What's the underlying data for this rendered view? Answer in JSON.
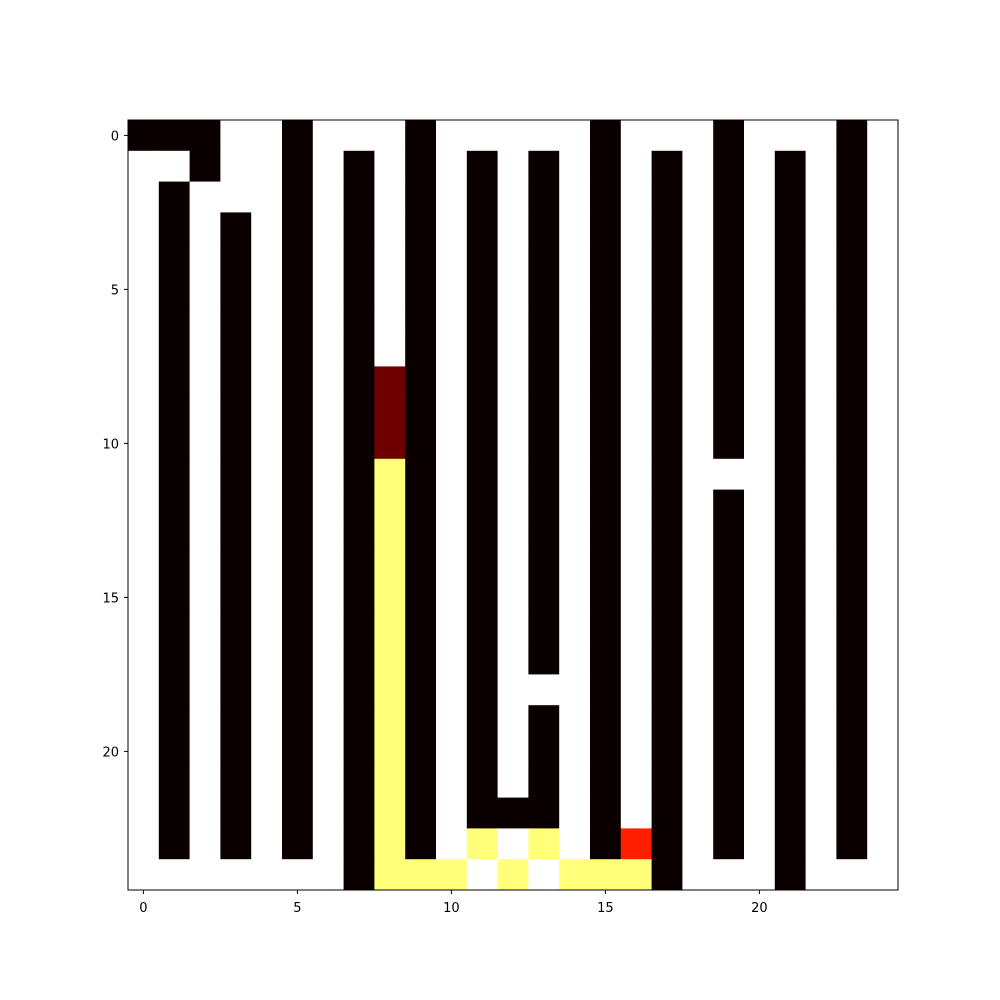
{
  "chart_data": {
    "type": "heatmap",
    "title": "",
    "xlabel": "",
    "ylabel": "",
    "rows": 25,
    "cols": 25,
    "xlim": [
      -0.5,
      24.5
    ],
    "ylim": [
      24.5,
      -0.5
    ],
    "y_axis_inverted": true,
    "grid": false,
    "x_ticks": [
      0,
      5,
      10,
      15,
      20
    ],
    "y_ticks": [
      0,
      5,
      10,
      15,
      20
    ],
    "x_tick_labels": [
      "0",
      "5",
      "10",
      "15",
      "20"
    ],
    "y_tick_labels": [
      "0",
      "5",
      "10",
      "15",
      "20"
    ],
    "colormap": "hot",
    "value_legend": {
      "0": "wall (black)",
      "1": "visited (dark red)",
      "2": "current position (red)",
      "3": "path (yellow)",
      "4": "open (white)"
    },
    "colors": {
      "0": "#0b0000",
      "1": "#6e0000",
      "2": "#ff1e00",
      "3": "#ffff7a",
      "4": "#ffffff"
    },
    "grid_values": [
      [
        0,
        0,
        0,
        4,
        4,
        0,
        4,
        4,
        4,
        0,
        4,
        4,
        4,
        4,
        4,
        0,
        4,
        4,
        4,
        0,
        4,
        4,
        4,
        0,
        4
      ],
      [
        4,
        4,
        0,
        4,
        4,
        0,
        4,
        0,
        4,
        0,
        4,
        0,
        4,
        0,
        4,
        0,
        4,
        0,
        4,
        0,
        4,
        0,
        4,
        0,
        4
      ],
      [
        4,
        0,
        4,
        4,
        4,
        0,
        4,
        0,
        4,
        0,
        4,
        0,
        4,
        0,
        4,
        0,
        4,
        0,
        4,
        0,
        4,
        0,
        4,
        0,
        4
      ],
      [
        4,
        0,
        4,
        0,
        4,
        0,
        4,
        0,
        4,
        0,
        4,
        0,
        4,
        0,
        4,
        0,
        4,
        0,
        4,
        0,
        4,
        0,
        4,
        0,
        4
      ],
      [
        4,
        0,
        4,
        0,
        4,
        0,
        4,
        0,
        4,
        0,
        4,
        0,
        4,
        0,
        4,
        0,
        4,
        0,
        4,
        0,
        4,
        0,
        4,
        0,
        4
      ],
      [
        4,
        0,
        4,
        0,
        4,
        0,
        4,
        0,
        4,
        0,
        4,
        0,
        4,
        0,
        4,
        0,
        4,
        0,
        4,
        0,
        4,
        0,
        4,
        0,
        4
      ],
      [
        4,
        0,
        4,
        0,
        4,
        0,
        4,
        0,
        4,
        0,
        4,
        0,
        4,
        0,
        4,
        0,
        4,
        0,
        4,
        0,
        4,
        0,
        4,
        0,
        4
      ],
      [
        4,
        0,
        4,
        0,
        4,
        0,
        4,
        0,
        4,
        0,
        4,
        0,
        4,
        0,
        4,
        0,
        4,
        0,
        4,
        0,
        4,
        0,
        4,
        0,
        4
      ],
      [
        4,
        0,
        4,
        0,
        4,
        0,
        4,
        0,
        1,
        0,
        4,
        0,
        4,
        0,
        4,
        0,
        4,
        0,
        4,
        0,
        4,
        0,
        4,
        0,
        4
      ],
      [
        4,
        0,
        4,
        0,
        4,
        0,
        4,
        0,
        1,
        0,
        4,
        0,
        4,
        0,
        4,
        0,
        4,
        0,
        4,
        0,
        4,
        0,
        4,
        0,
        4
      ],
      [
        4,
        0,
        4,
        0,
        4,
        0,
        4,
        0,
        1,
        0,
        4,
        0,
        4,
        0,
        4,
        0,
        4,
        0,
        4,
        0,
        4,
        0,
        4,
        0,
        4
      ],
      [
        4,
        0,
        4,
        0,
        4,
        0,
        4,
        0,
        3,
        0,
        4,
        0,
        4,
        0,
        4,
        0,
        4,
        0,
        4,
        4,
        4,
        0,
        4,
        0,
        4
      ],
      [
        4,
        0,
        4,
        0,
        4,
        0,
        4,
        0,
        3,
        0,
        4,
        0,
        4,
        0,
        4,
        0,
        4,
        0,
        4,
        0,
        4,
        0,
        4,
        0,
        4
      ],
      [
        4,
        0,
        4,
        0,
        4,
        0,
        4,
        0,
        3,
        0,
        4,
        0,
        4,
        0,
        4,
        0,
        4,
        0,
        4,
        0,
        4,
        0,
        4,
        0,
        4
      ],
      [
        4,
        0,
        4,
        0,
        4,
        0,
        4,
        0,
        3,
        0,
        4,
        0,
        4,
        0,
        4,
        0,
        4,
        0,
        4,
        0,
        4,
        0,
        4,
        0,
        4
      ],
      [
        4,
        0,
        4,
        0,
        4,
        0,
        4,
        0,
        3,
        0,
        4,
        0,
        4,
        0,
        4,
        0,
        4,
        0,
        4,
        0,
        4,
        0,
        4,
        0,
        4
      ],
      [
        4,
        0,
        4,
        0,
        4,
        0,
        4,
        0,
        3,
        0,
        4,
        0,
        4,
        0,
        4,
        0,
        4,
        0,
        4,
        0,
        4,
        0,
        4,
        0,
        4
      ],
      [
        4,
        0,
        4,
        0,
        4,
        0,
        4,
        0,
        3,
        0,
        4,
        0,
        4,
        0,
        4,
        0,
        4,
        0,
        4,
        0,
        4,
        0,
        4,
        0,
        4
      ],
      [
        4,
        0,
        4,
        0,
        4,
        0,
        4,
        0,
        3,
        0,
        4,
        0,
        4,
        4,
        4,
        0,
        4,
        0,
        4,
        0,
        4,
        0,
        4,
        0,
        4
      ],
      [
        4,
        0,
        4,
        0,
        4,
        0,
        4,
        0,
        3,
        0,
        4,
        0,
        4,
        0,
        4,
        0,
        4,
        0,
        4,
        0,
        4,
        0,
        4,
        0,
        4
      ],
      [
        4,
        0,
        4,
        0,
        4,
        0,
        4,
        0,
        3,
        0,
        4,
        0,
        4,
        0,
        4,
        0,
        4,
        0,
        4,
        0,
        4,
        0,
        4,
        0,
        4
      ],
      [
        4,
        0,
        4,
        0,
        4,
        0,
        4,
        0,
        3,
        0,
        4,
        0,
        4,
        0,
        4,
        0,
        4,
        0,
        4,
        0,
        4,
        0,
        4,
        0,
        4
      ],
      [
        4,
        0,
        4,
        0,
        4,
        0,
        4,
        0,
        3,
        0,
        4,
        0,
        0,
        0,
        4,
        0,
        4,
        0,
        4,
        0,
        4,
        0,
        4,
        0,
        4
      ],
      [
        4,
        0,
        4,
        0,
        4,
        0,
        4,
        0,
        3,
        0,
        4,
        3,
        4,
        3,
        4,
        0,
        2,
        0,
        4,
        0,
        4,
        0,
        4,
        0,
        4
      ],
      [
        4,
        4,
        4,
        4,
        4,
        4,
        4,
        0,
        3,
        3,
        3,
        4,
        3,
        4,
        3,
        3,
        3,
        0,
        4,
        4,
        4,
        0,
        4,
        4,
        4
      ]
    ]
  }
}
